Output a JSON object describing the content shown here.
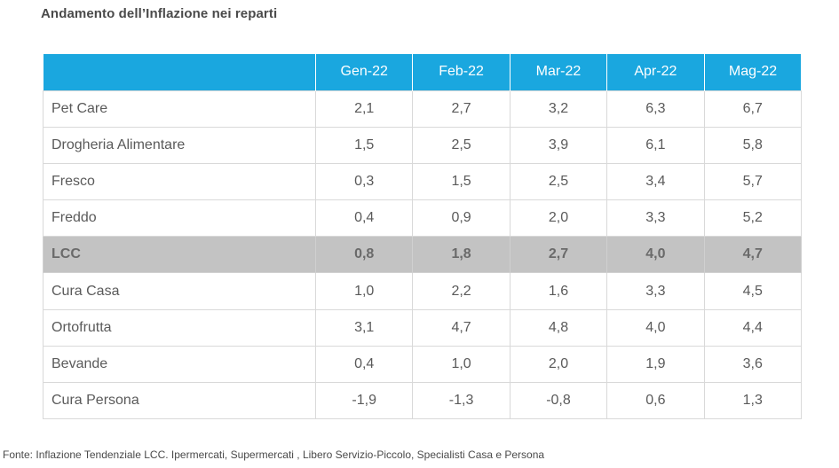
{
  "title": "Andamento dell’Inflazione nei reparti",
  "footnote": "Fonte: Inflazione Tendenziale LCC. Ipermercati, Supermercati , Libero Servizio-Piccolo, Specialisti Casa e Persona",
  "chart_data": {
    "type": "table",
    "columns": [
      "Gen-22",
      "Feb-22",
      "Mar-22",
      "Apr-22",
      "Mag-22"
    ],
    "rows": [
      {
        "label": "Pet Care",
        "values": [
          "2,1",
          "2,7",
          "3,2",
          "6,3",
          "6,7"
        ],
        "highlight": false
      },
      {
        "label": "Drogheria Alimentare",
        "values": [
          "1,5",
          "2,5",
          "3,9",
          "6,1",
          "5,8"
        ],
        "highlight": false
      },
      {
        "label": "Fresco",
        "values": [
          "0,3",
          "1,5",
          "2,5",
          "3,4",
          "5,7"
        ],
        "highlight": false
      },
      {
        "label": "Freddo",
        "values": [
          "0,4",
          "0,9",
          "2,0",
          "3,3",
          "5,2"
        ],
        "highlight": false
      },
      {
        "label": "LCC",
        "values": [
          "0,8",
          "1,8",
          "2,7",
          "4,0",
          "4,7"
        ],
        "highlight": true
      },
      {
        "label": "Cura Casa",
        "values": [
          "1,0",
          "2,2",
          "1,6",
          "3,3",
          "4,5"
        ],
        "highlight": false
      },
      {
        "label": "Ortofrutta",
        "values": [
          "3,1",
          "4,7",
          "4,8",
          "4,0",
          "4,4"
        ],
        "highlight": false
      },
      {
        "label": "Bevande",
        "values": [
          "0,4",
          "1,0",
          "2,0",
          "1,9",
          "3,6"
        ],
        "highlight": false
      },
      {
        "label": "Cura Persona",
        "values": [
          "-1,9",
          "-1,3",
          "-0,8",
          "0,6",
          "1,3"
        ],
        "highlight": false
      }
    ],
    "colors": {
      "header_bg": "#1aa7df",
      "header_text": "#ffffff",
      "highlight_bg": "#c3c3c3"
    }
  }
}
